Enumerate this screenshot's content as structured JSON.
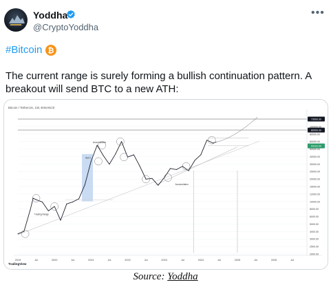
{
  "tweet": {
    "display_name": "Yoddha",
    "handle": "@CryptoYoddha",
    "hashtag": "#Bitcoin",
    "text": "The current range is surely forming a bullish continuation pattern. A breakout will send BTC to a new ATH:"
  },
  "chart_data": {
    "type": "line",
    "header": "Bitcoin / TetherUS, 1W, BINANCE",
    "x_tick_labels": [
      "2019",
      "Jul",
      "2020",
      "Jul",
      "2021",
      "Jul",
      "2022",
      "Jul",
      "2023",
      "Jul",
      "2024",
      "Jul",
      "2025",
      "Jul",
      "2026",
      "Jul"
    ],
    "y_tick_labels": [
      "150000.00",
      "100000.00",
      "80000.00",
      "60000.00",
      "50000.00",
      "40000.00",
      "30000.00",
      "25000.00",
      "20000.00",
      "15000.00",
      "12000.00",
      "10000.00",
      "8000.00",
      "6000.00",
      "5000.00",
      "4000.00",
      "3000.00",
      "2500.00",
      "2000.00"
    ],
    "price_badges": [
      "73000.00",
      "80000.00",
      "64102.00"
    ],
    "annotations": [
      "Trading Range",
      "Accumulation",
      "Bull 1",
      "Accumulation"
    ],
    "brand": "TradingView",
    "series": [
      {
        "x": [
          "2019-01",
          "2019-03",
          "2019-05",
          "2019-06",
          "2019-07",
          "2019-09",
          "2019-11",
          "2020-01",
          "2020-03",
          "2020-05",
          "2020-07",
          "2020-09",
          "2020-11",
          "2021-01",
          "2021-03",
          "2021-05",
          "2021-07",
          "2021-09",
          "2021-11",
          "2022-01",
          "2022-03",
          "2022-05",
          "2022-07",
          "2022-09",
          "2022-11",
          "2023-01",
          "2023-03",
          "2023-05",
          "2023-07",
          "2023-09",
          "2023-11",
          "2024-01",
          "2024-03",
          "2024-05",
          "2024-06"
        ],
        "values": [
          3600,
          3900,
          7500,
          11000,
          10500,
          9800,
          7400,
          8500,
          5500,
          9200,
          9800,
          10800,
          17000,
          35000,
          58000,
          42000,
          32000,
          44000,
          65000,
          40000,
          43000,
          30000,
          20000,
          20500,
          16500,
          21000,
          28000,
          27000,
          30000,
          26000,
          36000,
          43000,
          68000,
          62000,
          64000
        ]
      }
    ]
  },
  "caption": {
    "prefix": "Source: ",
    "link": "Yoddha"
  }
}
